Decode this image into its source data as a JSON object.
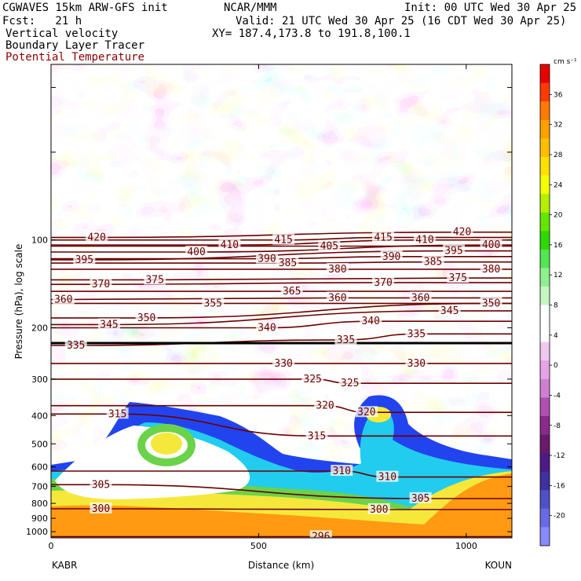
{
  "header": {
    "model": "CGWAVES 15km ARW-GFS init",
    "org": "NCAR/MMM",
    "init": "Init: 00 UTC Wed 30 Apr 25",
    "fcst": "Fcst:   21 h",
    "valid": "Valid: 21 UTC Wed 30 Apr 25 (16 CDT Wed 30 Apr 25)",
    "field1": "Vertical velocity",
    "field2": "Boundary Layer Tracer",
    "field3": "Potential Temperature",
    "xy": "XY= 187.4,173.8 to 191.8,100.1"
  },
  "chart_data": {
    "type": "heatmap",
    "xlabel": "Distance (km)",
    "ylabel": "Pressure (hPa), log scale",
    "x_ticks": [
      0,
      500,
      1000
    ],
    "xlim": [
      0,
      1110
    ],
    "y_ticks": [
      100,
      200,
      300,
      400,
      500,
      600,
      700,
      800,
      900,
      1000
    ],
    "ylim": [
      1050,
      25
    ],
    "y_scale": "log",
    "left_endpoint": "KABR",
    "right_endpoint": "KOUN",
    "colorbar": {
      "units": "cm s⁻¹",
      "labels": [
        36,
        32,
        28,
        24,
        20,
        16,
        12,
        8,
        4,
        0,
        -4,
        -8,
        -12,
        -16,
        -20
      ],
      "colors": [
        "#e60000",
        "#ff3a00",
        "#ff7a00",
        "#ffa000",
        "#ffbe00",
        "#ffe100",
        "#f3ff00",
        "#b4f000",
        "#64e600",
        "#2ed900",
        "#52e652",
        "#8ef08e",
        "#c4f7c4",
        "#ffffff",
        "#ffffff",
        "#f0c8f0",
        "#e6a4e6",
        "#d07fd0",
        "#b050b0",
        "#8a2a8a",
        "#6a1a6a",
        "#4e1a86",
        "#4030a0",
        "#5050c8",
        "#6a6ae6",
        "#8a8aff"
      ]
    },
    "theta_contours": [
      {
        "value": 296,
        "x": 650,
        "p": 1040
      },
      {
        "value": 300,
        "x": 120,
        "p": 835
      },
      {
        "value": 300,
        "x": 790,
        "p": 840
      },
      {
        "value": 305,
        "x": 120,
        "p": 690
      },
      {
        "value": 305,
        "x": 890,
        "p": 770
      },
      {
        "value": 310,
        "x": 700,
        "p": 620
      },
      {
        "value": 310,
        "x": 810,
        "p": 650
      },
      {
        "value": 315,
        "x": 160,
        "p": 395
      },
      {
        "value": 315,
        "x": 640,
        "p": 470
      },
      {
        "value": 320,
        "x": 660,
        "p": 370
      },
      {
        "value": 320,
        "x": 760,
        "p": 390
      },
      {
        "value": 325,
        "x": 630,
        "p": 300
      },
      {
        "value": 325,
        "x": 720,
        "p": 310
      },
      {
        "value": 330,
        "x": 560,
        "p": 265
      },
      {
        "value": 330,
        "x": 880,
        "p": 265
      },
      {
        "value": 335,
        "x": 60,
        "p": 230
      },
      {
        "value": 335,
        "x": 710,
        "p": 220
      },
      {
        "value": 335,
        "x": 880,
        "p": 210
      },
      {
        "value": 340,
        "x": 520,
        "p": 200
      },
      {
        "value": 340,
        "x": 770,
        "p": 190
      },
      {
        "value": 345,
        "x": 140,
        "p": 195
      },
      {
        "value": 345,
        "x": 960,
        "p": 175
      },
      {
        "value": 350,
        "x": 230,
        "p": 185
      },
      {
        "value": 350,
        "x": 1060,
        "p": 165
      },
      {
        "value": 355,
        "x": 390,
        "p": 165
      },
      {
        "value": 360,
        "x": 30,
        "p": 160
      },
      {
        "value": 360,
        "x": 690,
        "p": 158
      },
      {
        "value": 360,
        "x": 890,
        "p": 158
      },
      {
        "value": 365,
        "x": 580,
        "p": 150
      },
      {
        "value": 370,
        "x": 120,
        "p": 142
      },
      {
        "value": 370,
        "x": 800,
        "p": 140
      },
      {
        "value": 375,
        "x": 250,
        "p": 137
      },
      {
        "value": 375,
        "x": 980,
        "p": 135
      },
      {
        "value": 380,
        "x": 690,
        "p": 126
      },
      {
        "value": 380,
        "x": 1060,
        "p": 126
      },
      {
        "value": 385,
        "x": 570,
        "p": 120
      },
      {
        "value": 385,
        "x": 920,
        "p": 119
      },
      {
        "value": 390,
        "x": 520,
        "p": 116
      },
      {
        "value": 390,
        "x": 820,
        "p": 114
      },
      {
        "value": 395,
        "x": 80,
        "p": 117
      },
      {
        "value": 395,
        "x": 970,
        "p": 109
      },
      {
        "value": 400,
        "x": 350,
        "p": 110
      },
      {
        "value": 400,
        "x": 1060,
        "p": 104
      },
      {
        "value": 405,
        "x": 670,
        "p": 105
      },
      {
        "value": 410,
        "x": 430,
        "p": 104
      },
      {
        "value": 410,
        "x": 900,
        "p": 100
      },
      {
        "value": 415,
        "x": 560,
        "p": 100
      },
      {
        "value": 415,
        "x": 800,
        "p": 98
      },
      {
        "value": 420,
        "x": 110,
        "p": 98
      },
      {
        "value": 420,
        "x": 990,
        "p": 94
      }
    ]
  }
}
